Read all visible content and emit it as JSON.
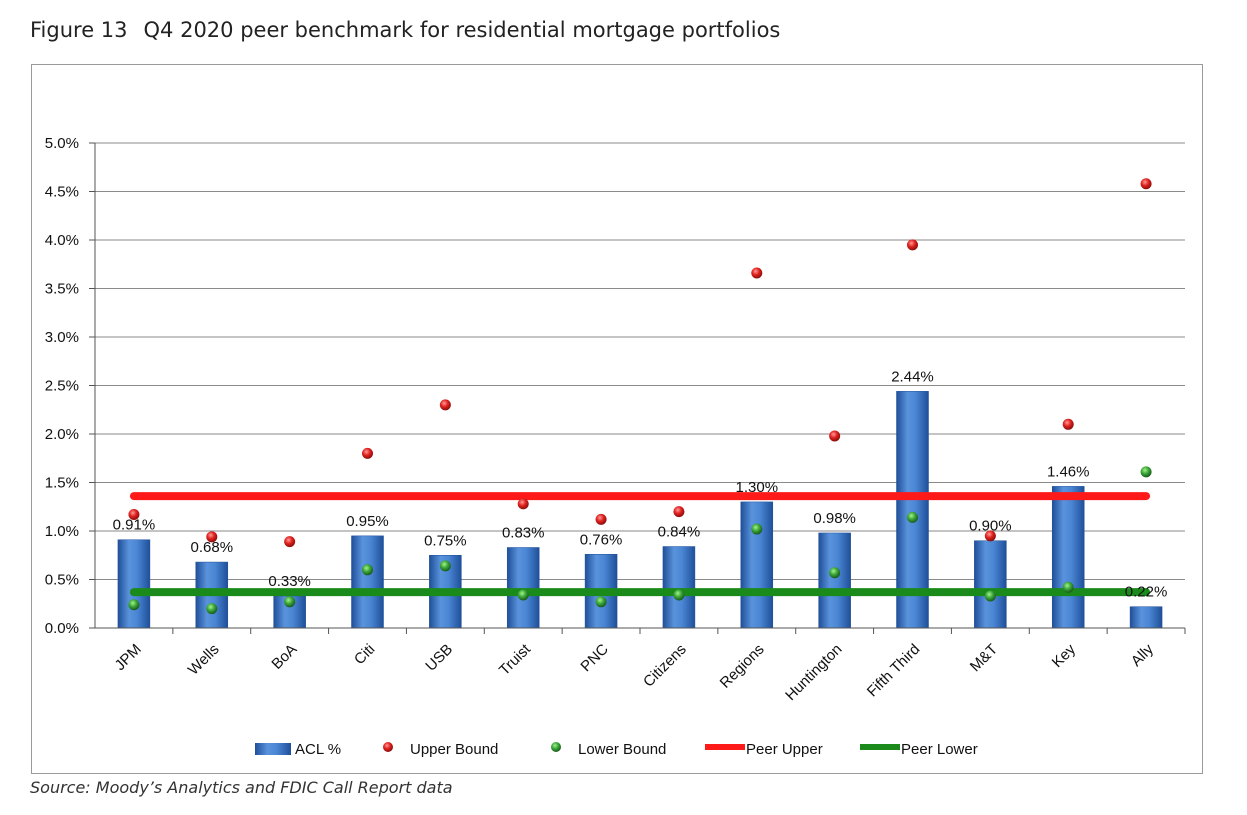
{
  "figure": {
    "number": "Figure 13",
    "title": "Q4 2020 peer benchmark for residential mortgage portfolios",
    "source": "Source: Moody’s Analytics and FDIC Call Report data"
  },
  "chart_data": {
    "type": "bar",
    "categories": [
      "JPM",
      "Wells",
      "BoA",
      "Citi",
      "USB",
      "Truist",
      "PNC",
      "Citizens",
      "Regions",
      "Huntington",
      "Fifth Third",
      "M&T",
      "Key",
      "Ally"
    ],
    "series": [
      {
        "name": "ACL %",
        "type": "bar",
        "color": "#3a78c8",
        "values": [
          0.91,
          0.68,
          0.33,
          0.95,
          0.75,
          0.83,
          0.76,
          0.84,
          1.3,
          0.98,
          2.44,
          0.9,
          1.46,
          0.22
        ],
        "labels": [
          "0.91%",
          "0.68%",
          "0.33%",
          "0.95%",
          "0.75%",
          "0.83%",
          "0.76%",
          "0.84%",
          "1.30%",
          "0.98%",
          "2.44%",
          "0.90%",
          "1.46%",
          "0.22%"
        ]
      },
      {
        "name": "Upper Bound",
        "type": "scatter",
        "color": "#e0221e",
        "values": [
          1.17,
          0.94,
          0.89,
          1.8,
          2.3,
          1.28,
          1.12,
          1.2,
          3.66,
          1.98,
          3.95,
          0.95,
          2.1,
          4.58
        ]
      },
      {
        "name": "Lower Bound",
        "type": "scatter",
        "color": "#3aa83a",
        "values": [
          0.24,
          0.2,
          0.27,
          0.6,
          0.64,
          0.34,
          0.27,
          0.34,
          1.02,
          0.57,
          1.14,
          0.33,
          0.42,
          1.61
        ]
      },
      {
        "name": "Peer Upper",
        "type": "line",
        "color": "#ff1a1a",
        "value": 1.36
      },
      {
        "name": "Peer Lower",
        "type": "line",
        "color": "#1a8a1a",
        "value": 0.37
      }
    ],
    "yticks": [
      "0.0%",
      "0.5%",
      "1.0%",
      "1.5%",
      "2.0%",
      "2.5%",
      "3.0%",
      "3.5%",
      "4.0%",
      "4.5%",
      "5.0%"
    ],
    "ylim": [
      0,
      5
    ],
    "grid": true,
    "legend_position": "bottom"
  }
}
